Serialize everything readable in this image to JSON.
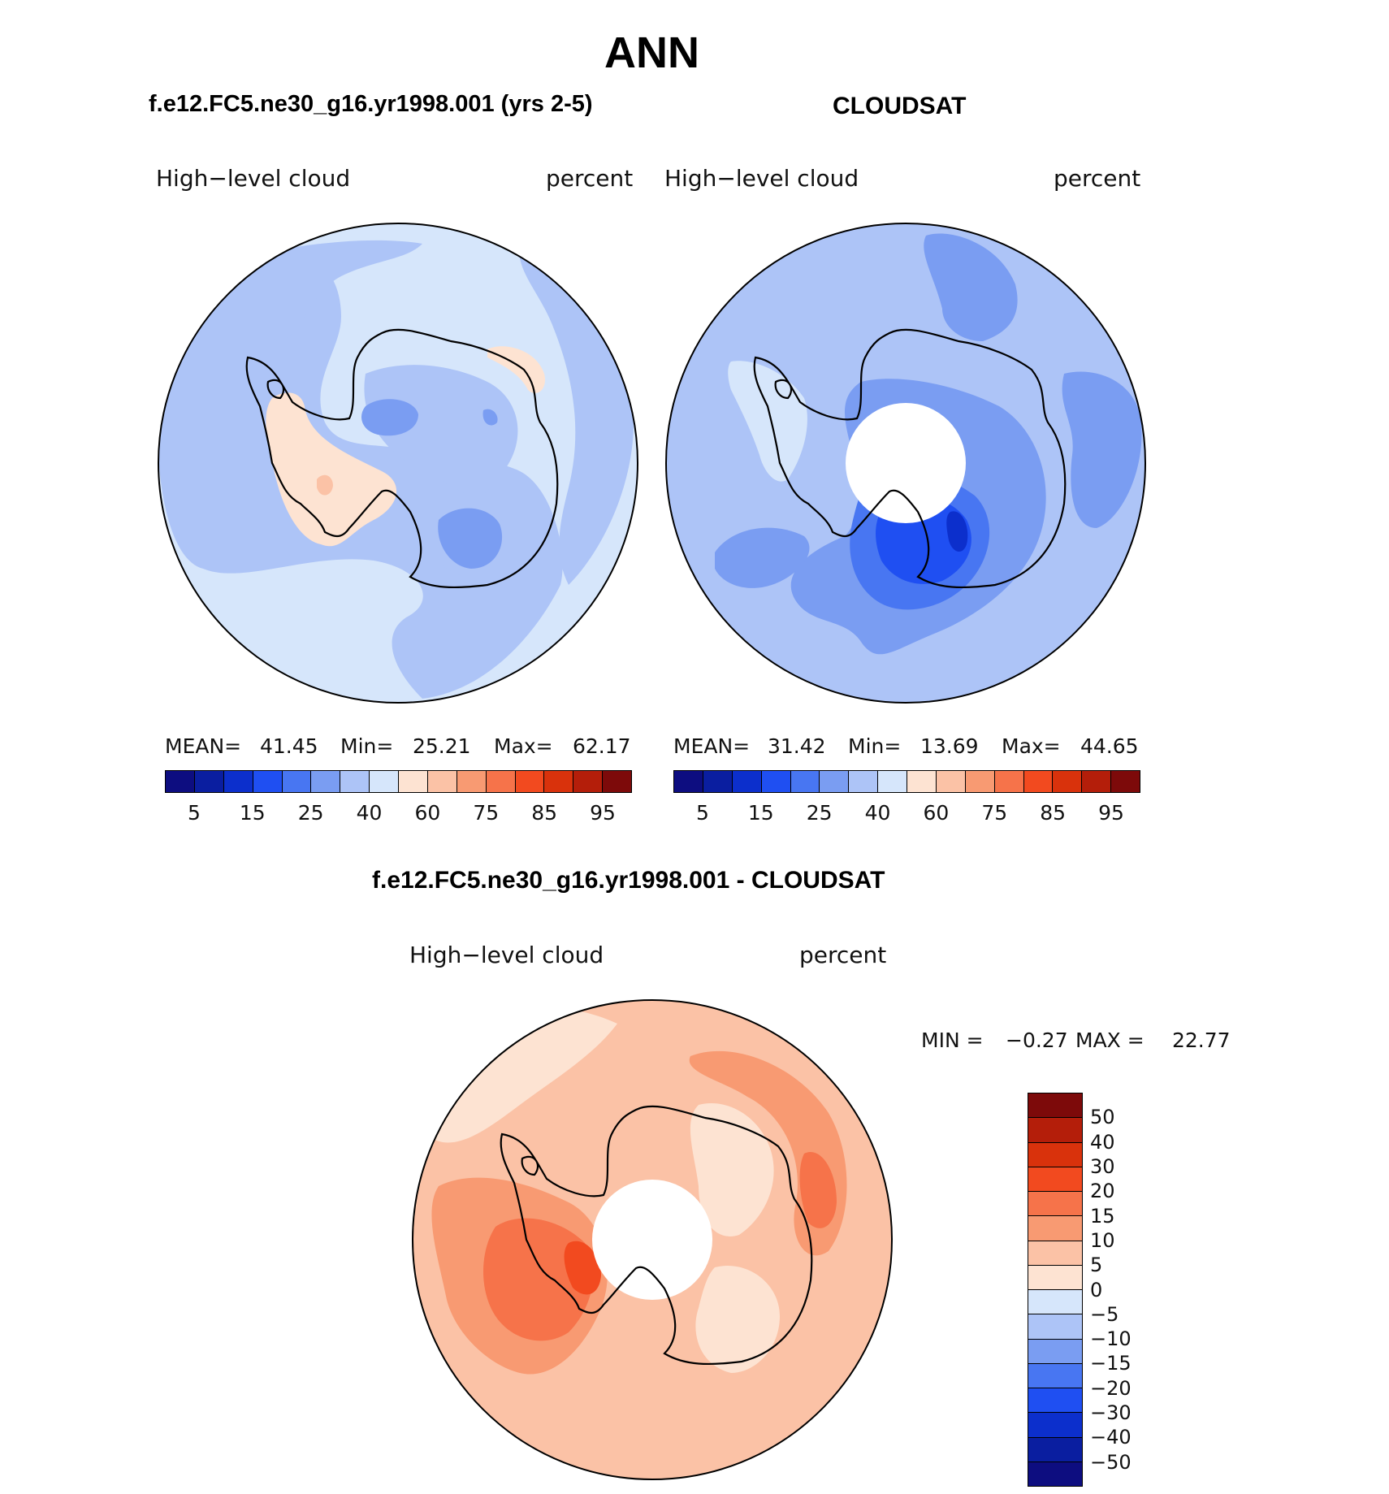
{
  "figure_title": "ANN",
  "panel_titles": {
    "model": "f.e12.FC5.ne30_g16.yr1998.001 (yrs 2-5)",
    "obs": "CLOUDSAT",
    "diff": "f.e12.FC5.ne30_g16.yr1998.001 - CLOUDSAT"
  },
  "panel_labels": {
    "model": {
      "variable": "High−level cloud",
      "units": "percent"
    },
    "obs": {
      "variable": "High−level cloud",
      "units": "percent"
    },
    "diff": {
      "variable": "High−level cloud",
      "units": "percent"
    }
  },
  "stats": {
    "model": {
      "mean_label": "MEAN=",
      "mean": "41.45",
      "min_label": "Min=",
      "min": "25.21",
      "max_label": "Max=",
      "max": "62.17"
    },
    "obs": {
      "mean_label": "MEAN=",
      "mean": "31.42",
      "min_label": "Min=",
      "min": "13.69",
      "max_label": "Max=",
      "max": "44.65"
    },
    "diff": {
      "min_label": "MIN =",
      "min": "−0.27",
      "max_label": "MAX =",
      "max": "22.77"
    }
  },
  "colorbar_main": {
    "colors": [
      "#0d0d80",
      "#0a1ea0",
      "#0c2fcc",
      "#1f4ff2",
      "#4876f2",
      "#7a9df2",
      "#adc4f7",
      "#d6e6fb",
      "#fde3d2",
      "#fbc2a6",
      "#f89a72",
      "#f6734a",
      "#f24a1f",
      "#d9320c",
      "#b41e0a",
      "#7d0a0a"
    ],
    "labels": [
      "5",
      "15",
      "25",
      "40",
      "60",
      "75",
      "85",
      "95"
    ]
  },
  "colorbar_diff": {
    "colors": [
      "#7d0a0a",
      "#b41e0a",
      "#d9320c",
      "#f24a1f",
      "#f6734a",
      "#f89a72",
      "#fbc2a6",
      "#fde3d2",
      "#d6e6fb",
      "#adc4f7",
      "#7a9df2",
      "#4876f2",
      "#1f4ff2",
      "#0c2fcc",
      "#0a1ea0",
      "#0d0d80"
    ],
    "labels": [
      "50",
      "40",
      "30",
      "20",
      "15",
      "10",
      "5",
      "0",
      "−5",
      "−10",
      "−15",
      "−20",
      "−30",
      "−40",
      "−50"
    ]
  },
  "map_fill_colors": {
    "model_base": "#d6e6fb",
    "model_mid": "#adc4f7",
    "model_low": "#7a9df2",
    "model_warm": "#fde3d2",
    "model_warm2": "#fbc2a6",
    "obs_base": "#adc4f7",
    "obs_mid": "#7a9df2",
    "obs_low": "#4876f2",
    "obs_lower": "#1f4ff2",
    "obs_lowest": "#0c2fcc",
    "obs_light": "#d6e6fb",
    "diff_base": "#fbc2a6",
    "diff_light": "#fde3d2",
    "diff_mid": "#f89a72",
    "diff_high": "#f6734a",
    "diff_higher": "#f24a1f"
  }
}
